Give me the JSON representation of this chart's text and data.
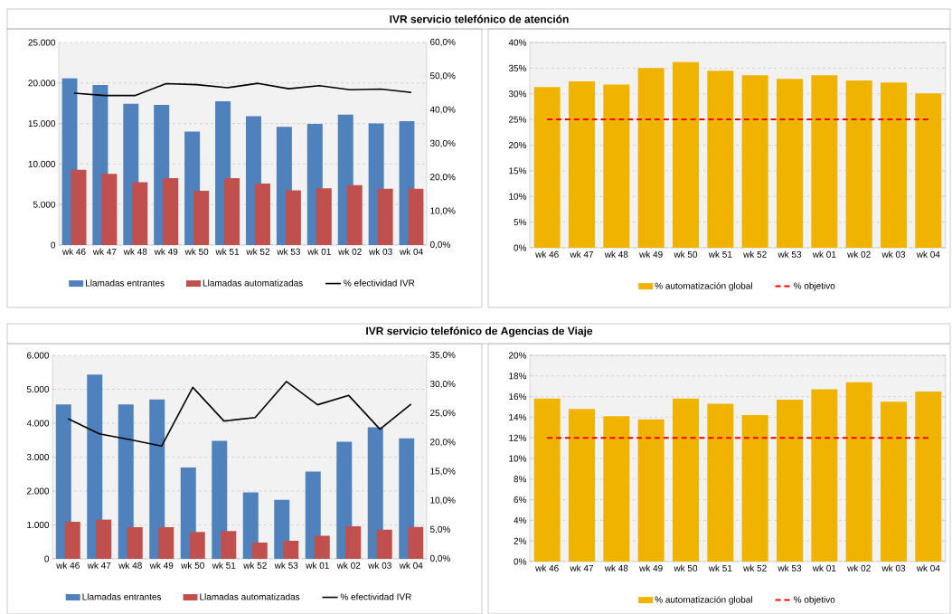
{
  "chart_data": [
    {
      "type": "bar",
      "title": "IVR servicio telefónico de atención",
      "categories": [
        "wk 46",
        "wk 47",
        "wk 48",
        "wk 49",
        "wk 50",
        "wk 51",
        "wk 52",
        "wk 53",
        "wk 01",
        "wk 02",
        "wk 03",
        "wk 04"
      ],
      "series": [
        {
          "name": "Llamadas entrantes",
          "color": "#4f81bd",
          "values": [
            20600,
            19750,
            17450,
            17300,
            14000,
            17750,
            15900,
            14600,
            14950,
            16100,
            15000,
            15300
          ]
        },
        {
          "name": "Llamadas automatizadas",
          "color": "#c0504d",
          "values": [
            9300,
            8800,
            7750,
            8250,
            6700,
            8250,
            7600,
            6750,
            7000,
            7400,
            6950,
            6950
          ]
        },
        {
          "name": "% efectividad IVR",
          "type": "line",
          "axis": "y2",
          "color": "#000000",
          "values": [
            45.0,
            44.3,
            44.3,
            47.8,
            47.5,
            46.6,
            47.9,
            46.3,
            47.2,
            46.0,
            46.2,
            45.2
          ]
        }
      ],
      "ylim": [
        0,
        25000
      ],
      "yticks": [
        0,
        {
          "value": 5000,
          "label": "5.000"
        },
        {
          "value": 10000,
          "label": "10.000"
        },
        {
          "value": 15000,
          "label": "15.000"
        },
        {
          "value": 20000,
          "label": "20.000"
        },
        {
          "value": 25000,
          "label": "25.000"
        }
      ],
      "y2lim": [
        0,
        60
      ],
      "y2ticks": [
        {
          "value": 0,
          "label": "0,0%"
        },
        {
          "value": 10,
          "label": "10,0%"
        },
        {
          "value": 20,
          "label": "20,0%"
        },
        {
          "value": 30,
          "label": "30,0%"
        },
        {
          "value": 40,
          "label": "40,0%"
        },
        {
          "value": 50,
          "label": "50,0%"
        },
        {
          "value": 60,
          "label": "60,0%"
        }
      ],
      "grid": "y",
      "legend": "bottom"
    },
    {
      "type": "bar",
      "categories": [
        "wk 46",
        "wk 47",
        "wk 48",
        "wk 49",
        "wk 50",
        "wk 51",
        "wk 52",
        "wk 53",
        "wk 01",
        "wk 02",
        "wk 03",
        "wk 04"
      ],
      "series": [
        {
          "name": "% automatización global",
          "color": "#f0b400",
          "values": [
            31.3,
            32.4,
            31.8,
            35.0,
            36.2,
            34.5,
            33.6,
            32.9,
            33.6,
            32.6,
            32.2,
            30.1
          ]
        },
        {
          "name": "% objetivo",
          "type": "line",
          "line_style": "dashed",
          "color": "#ff0000",
          "values": [
            25,
            25,
            25,
            25,
            25,
            25,
            25,
            25,
            25,
            25,
            25,
            25
          ]
        }
      ],
      "ylim": [
        0,
        40
      ],
      "yticks": [
        {
          "value": 0,
          "label": "0%"
        },
        {
          "value": 5,
          "label": "5%"
        },
        {
          "value": 10,
          "label": "10%"
        },
        {
          "value": 15,
          "label": "15%"
        },
        {
          "value": 20,
          "label": "20%"
        },
        {
          "value": 25,
          "label": "25%"
        },
        {
          "value": 30,
          "label": "30%"
        },
        {
          "value": 35,
          "label": "35%"
        },
        {
          "value": 40,
          "label": "40%"
        }
      ],
      "grid": "y",
      "legend": "bottom"
    },
    {
      "type": "bar",
      "title": "IVR servicio telefónico de Agencias de Viaje",
      "categories": [
        "wk 46",
        "wk 47",
        "wk 48",
        "wk 49",
        "wk 50",
        "wk 51",
        "wk 52",
        "wk 53",
        "wk 01",
        "wk 02",
        "wk 03",
        "wk 04"
      ],
      "series": [
        {
          "name": "Llamadas entrantes",
          "color": "#4f81bd",
          "values": [
            4550,
            5430,
            4550,
            4700,
            2690,
            3480,
            1960,
            1740,
            2570,
            3450,
            3880,
            3550
          ]
        },
        {
          "name": "Llamadas automatizadas",
          "color": "#c0504d",
          "values": [
            1090,
            1160,
            930,
            930,
            790,
            820,
            480,
            530,
            680,
            960,
            860,
            940
          ]
        },
        {
          "name": "% efectividad IVR",
          "type": "line",
          "axis": "y2",
          "color": "#000000",
          "values": [
            24.1,
            21.5,
            20.5,
            19.4,
            29.5,
            23.7,
            24.3,
            30.5,
            26.5,
            28.1,
            22.3,
            26.6
          ]
        }
      ],
      "ylim": [
        0,
        6000
      ],
      "yticks": [
        0,
        {
          "value": 1000,
          "label": "1.000"
        },
        {
          "value": 2000,
          "label": "2.000"
        },
        {
          "value": 3000,
          "label": "3.000"
        },
        {
          "value": 4000,
          "label": "4.000"
        },
        {
          "value": 5000,
          "label": "5.000"
        },
        {
          "value": 6000,
          "label": "6.000"
        }
      ],
      "y2lim": [
        0,
        35
      ],
      "y2ticks": [
        {
          "value": 0,
          "label": "0,0%"
        },
        {
          "value": 5,
          "label": "5,0%"
        },
        {
          "value": 10,
          "label": "10,0%"
        },
        {
          "value": 15,
          "label": "15,0%"
        },
        {
          "value": 20,
          "label": "20,0%"
        },
        {
          "value": 25,
          "label": "25,0%"
        },
        {
          "value": 30,
          "label": "30,0%"
        },
        {
          "value": 35,
          "label": "35,0%"
        }
      ],
      "grid": "y",
      "legend": "bottom"
    },
    {
      "type": "bar",
      "categories": [
        "wk 46",
        "wk 47",
        "wk 48",
        "wk 49",
        "wk 50",
        "wk 51",
        "wk 52",
        "wk 53",
        "wk 01",
        "wk 02",
        "wk 03",
        "wk 04"
      ],
      "series": [
        {
          "name": "% automatización global",
          "color": "#f0b400",
          "values": [
            15.8,
            14.8,
            14.1,
            13.8,
            15.8,
            15.3,
            14.2,
            15.7,
            16.7,
            17.4,
            15.5,
            16.5
          ]
        },
        {
          "name": "% objetivo",
          "type": "line",
          "line_style": "dashed",
          "color": "#ff0000",
          "values": [
            12,
            12,
            12,
            12,
            12,
            12,
            12,
            12,
            12,
            12,
            12,
            12
          ]
        }
      ],
      "ylim": [
        0,
        20
      ],
      "yticks": [
        {
          "value": 0,
          "label": "0%"
        },
        {
          "value": 2,
          "label": "2%"
        },
        {
          "value": 4,
          "label": "4%"
        },
        {
          "value": 6,
          "label": "6%"
        },
        {
          "value": 8,
          "label": "8%"
        },
        {
          "value": 10,
          "label": "10%"
        },
        {
          "value": 12,
          "label": "12%"
        },
        {
          "value": 14,
          "label": "14%"
        },
        {
          "value": 16,
          "label": "16%"
        },
        {
          "value": 18,
          "label": "18%"
        },
        {
          "value": 20,
          "label": "20%"
        }
      ],
      "grid": "y",
      "legend": "bottom"
    }
  ]
}
